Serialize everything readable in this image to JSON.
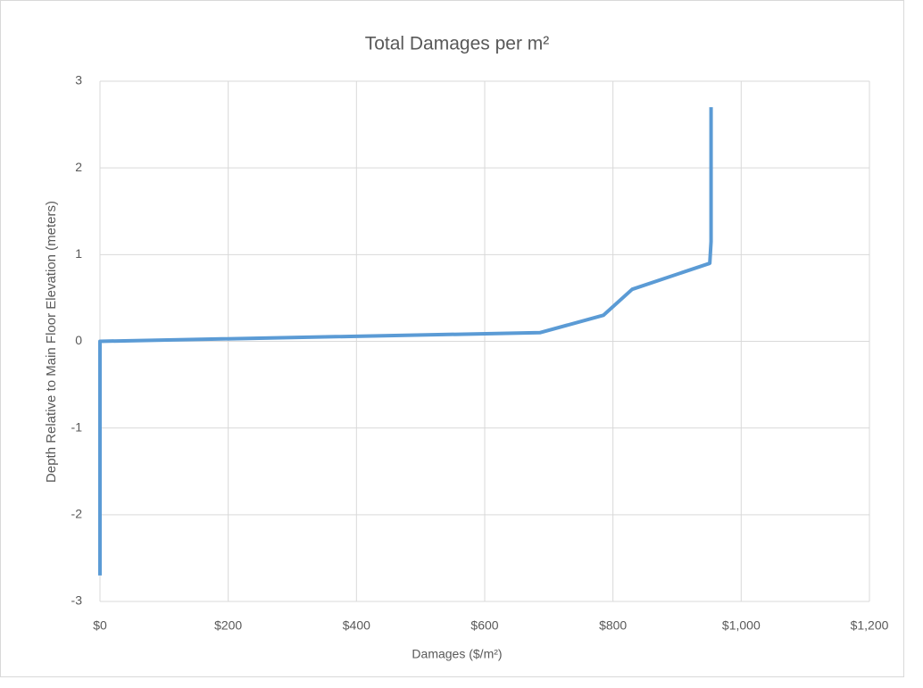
{
  "chart_data": {
    "type": "line",
    "title": "Total Damages per m²",
    "x_label": "Damages ($/m²)",
    "y_label": "Depth Relative to Main Floor Elevation (meters)",
    "x": [
      0,
      0,
      686,
      785,
      830,
      951,
      953,
      953
    ],
    "series": [
      {
        "color": "#5b9bd5",
        "values": [
          -2.7,
          0,
          0.1,
          0.3,
          0.6,
          0.9,
          1.15,
          2.7
        ]
      }
    ],
    "xlim": [
      0,
      1200
    ],
    "xticks": [
      {
        "value": 0,
        "label": "$0"
      },
      {
        "value": 200,
        "label": "$200"
      },
      {
        "value": 400,
        "label": "$400"
      },
      {
        "value": 600,
        "label": "$600"
      },
      {
        "value": 800,
        "label": "$800"
      },
      {
        "value": 1000,
        "label": "$1,000"
      },
      {
        "value": 1200,
        "label": "$1,200"
      }
    ],
    "ylim": [
      -3,
      3
    ],
    "yticks": [
      -3,
      -2,
      -1,
      0,
      1,
      2,
      3
    ],
    "grid": true
  }
}
